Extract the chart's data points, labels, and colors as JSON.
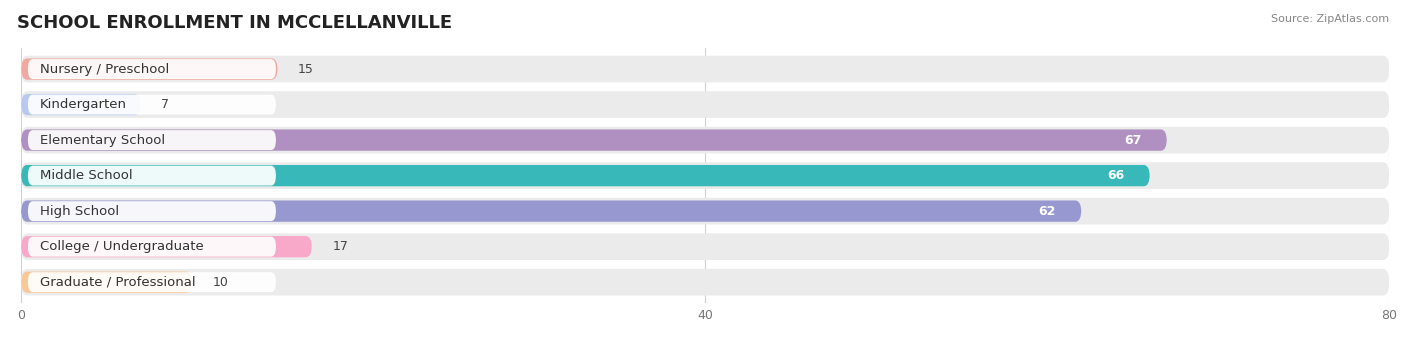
{
  "title": "SCHOOL ENROLLMENT IN MCCLELLANVILLE",
  "source": "Source: ZipAtlas.com",
  "categories": [
    "Nursery / Preschool",
    "Kindergarten",
    "Elementary School",
    "Middle School",
    "High School",
    "College / Undergraduate",
    "Graduate / Professional"
  ],
  "values": [
    15,
    7,
    67,
    66,
    62,
    17,
    10
  ],
  "bar_colors": [
    "#f0a8a0",
    "#b8c8f0",
    "#b090c0",
    "#38b8b8",
    "#9898d0",
    "#f8a8c8",
    "#f8c898"
  ],
  "bg_color": "#ebebeb",
  "fig_bg": "#ffffff",
  "xlim": [
    0,
    80
  ],
  "xticks": [
    0,
    40,
    80
  ],
  "title_fontsize": 13,
  "label_fontsize": 9.5,
  "value_fontsize": 9
}
